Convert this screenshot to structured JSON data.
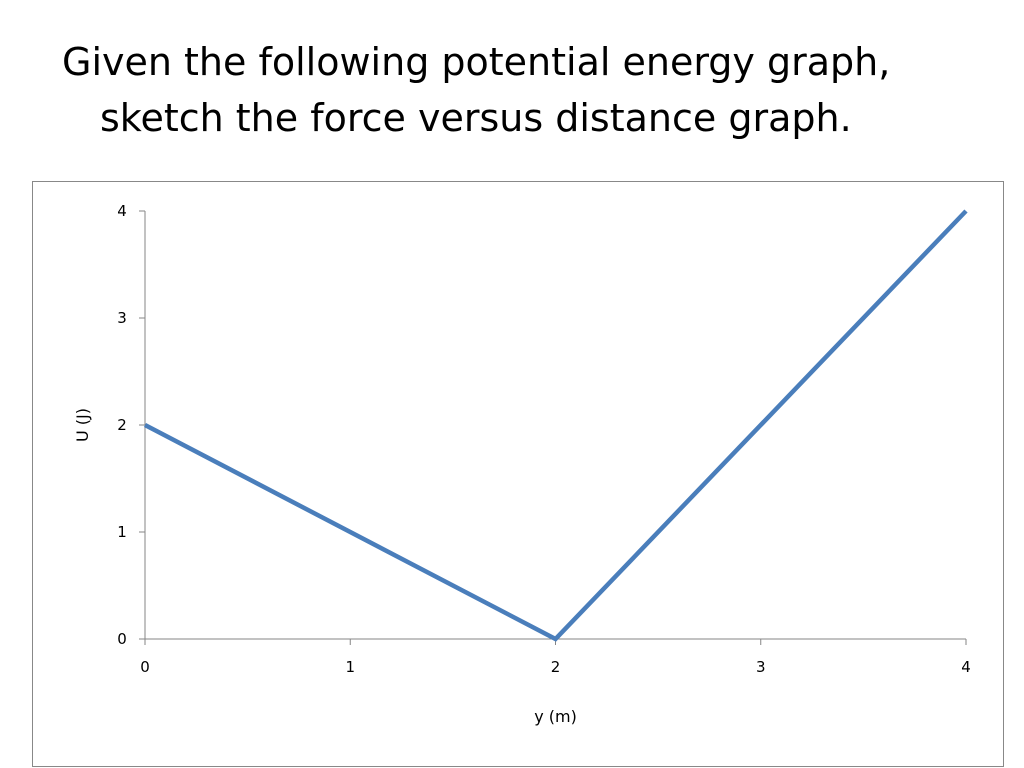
{
  "slide": {
    "title_line1": "Given the following potential energy graph,",
    "title_line2": "sketch the force versus distance graph."
  },
  "chart_data": {
    "type": "line",
    "xlabel": "y (m)",
    "ylabel": "U (J)",
    "xlim": [
      0,
      4
    ],
    "ylim": [
      0,
      4
    ],
    "x_ticks": [
      0,
      1,
      2,
      3,
      4
    ],
    "y_ticks": [
      0,
      1,
      2,
      3,
      4
    ],
    "grid": false,
    "legend": "none",
    "series": [
      {
        "x": [
          0,
          2,
          4
        ],
        "y": [
          2,
          0,
          4
        ],
        "color": "#4a7ebb"
      }
    ]
  }
}
